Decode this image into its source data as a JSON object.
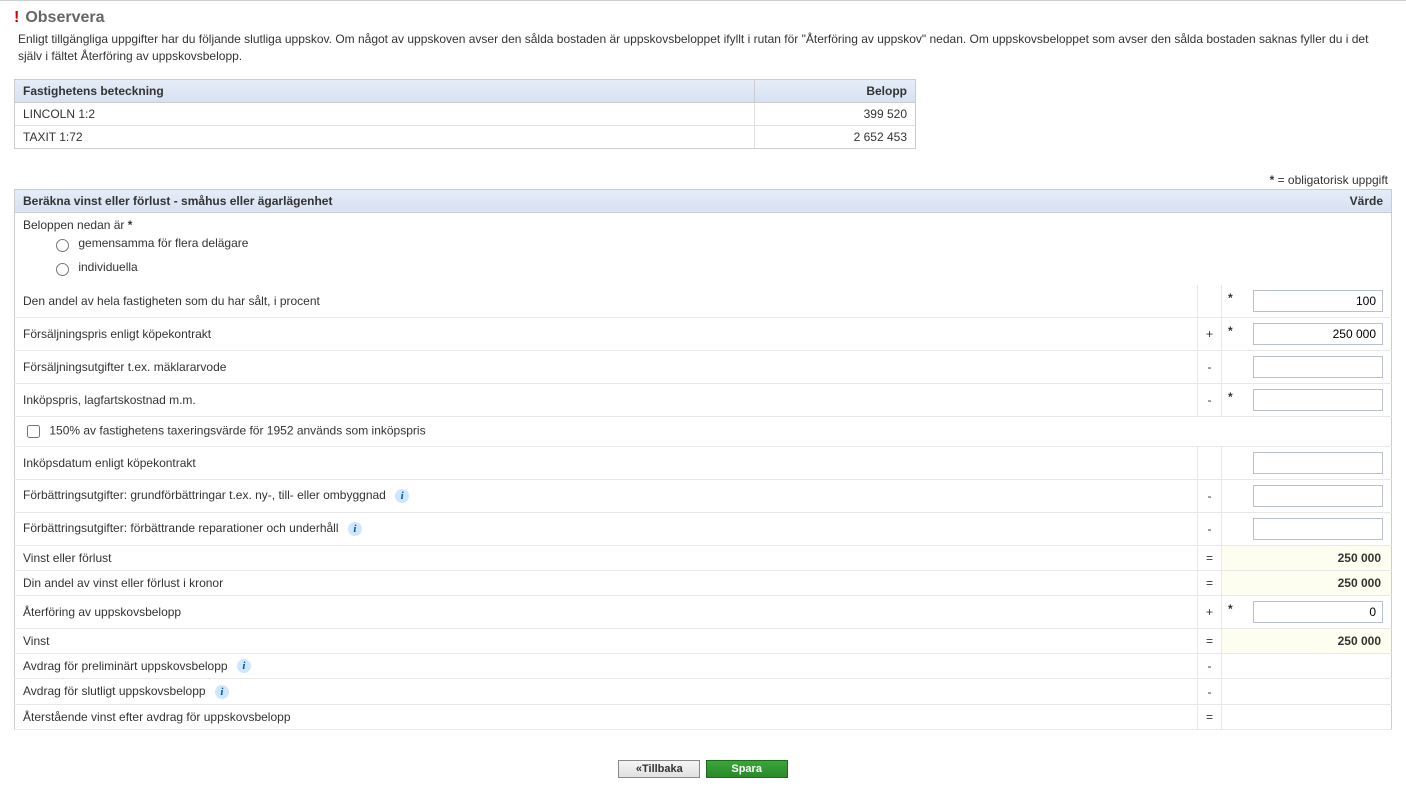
{
  "observe": {
    "title": "Observera",
    "text": "Enligt tillgängliga uppgifter har du följande slutliga uppskov. Om något av uppskoven avser den sålda bostaden är uppskovsbeloppet ifyllt i rutan för \"Återföring av uppskov\" nedan. Om uppskovsbeloppet som avser den sålda bostaden saknas fyller du i det själv i fältet Återföring av uppskovsbelopp."
  },
  "property_table": {
    "header_name": "Fastighetens beteckning",
    "header_amount": "Belopp",
    "rows": [
      {
        "name": "LINCOLN 1:2",
        "amount": "399 520"
      },
      {
        "name": "TAXIT 1:72",
        "amount": "2 652 453"
      }
    ]
  },
  "mandatory_note": "= obligatorisk uppgift",
  "calc": {
    "section_title": "Beräkna vinst eller förlust - småhus eller ägarlägenhet",
    "value_header": "Värde",
    "belopp_label": "Beloppen nedan är",
    "radio_common": "gemensamma för flera delägare",
    "radio_individual": "individuella",
    "rows": {
      "andel": {
        "label": "Den andel av hela fastigheten som du har sålt, i procent",
        "sign": "",
        "req": true,
        "value": "100"
      },
      "fpris": {
        "label": "Försäljningspris enligt köpekontrakt",
        "sign": "+",
        "req": true,
        "value": "250 000"
      },
      "futg": {
        "label": "Försäljningsutgifter t.ex. mäklararvode",
        "sign": "-",
        "req": false,
        "value": ""
      },
      "inkop": {
        "label": "Inköpspris, lagfartskostnad m.m.",
        "sign": "-",
        "req": true,
        "value": ""
      },
      "tax1952": {
        "label": "150% av fastighetens taxeringsvärde för 1952 används som inköpspris"
      },
      "inkopsdat": {
        "label": "Inköpsdatum enligt köpekontrakt",
        "sign": "",
        "req": false,
        "value": ""
      },
      "forb1": {
        "label": "Förbättringsutgifter: grundförbättringar t.ex. ny-, till- eller ombyggnad",
        "sign": "-",
        "req": false,
        "value": ""
      },
      "forb2": {
        "label": "Förbättringsutgifter: förbättrande reparationer och underhåll",
        "sign": "-",
        "req": false,
        "value": ""
      },
      "vinst1": {
        "label": "Vinst eller förlust",
        "sign": "=",
        "value": "250 000"
      },
      "dinandel": {
        "label": "Din andel av vinst eller förlust i kronor",
        "sign": "=",
        "value": "250 000"
      },
      "aterfor": {
        "label": "Återföring av uppskovsbelopp",
        "sign": "+",
        "req": true,
        "value": "0"
      },
      "vinst2": {
        "label": "Vinst",
        "sign": "=",
        "value": "250 000"
      },
      "avdragp": {
        "label": "Avdrag för preliminärt uppskovsbelopp",
        "sign": "-"
      },
      "avdrags": {
        "label": "Avdrag för slutligt uppskovsbelopp",
        "sign": "-"
      },
      "aterst": {
        "label": "Återstående vinst efter avdrag för uppskovsbelopp",
        "sign": "="
      }
    }
  },
  "buttons": {
    "back": "«Tillbaka",
    "save": "Spara"
  }
}
